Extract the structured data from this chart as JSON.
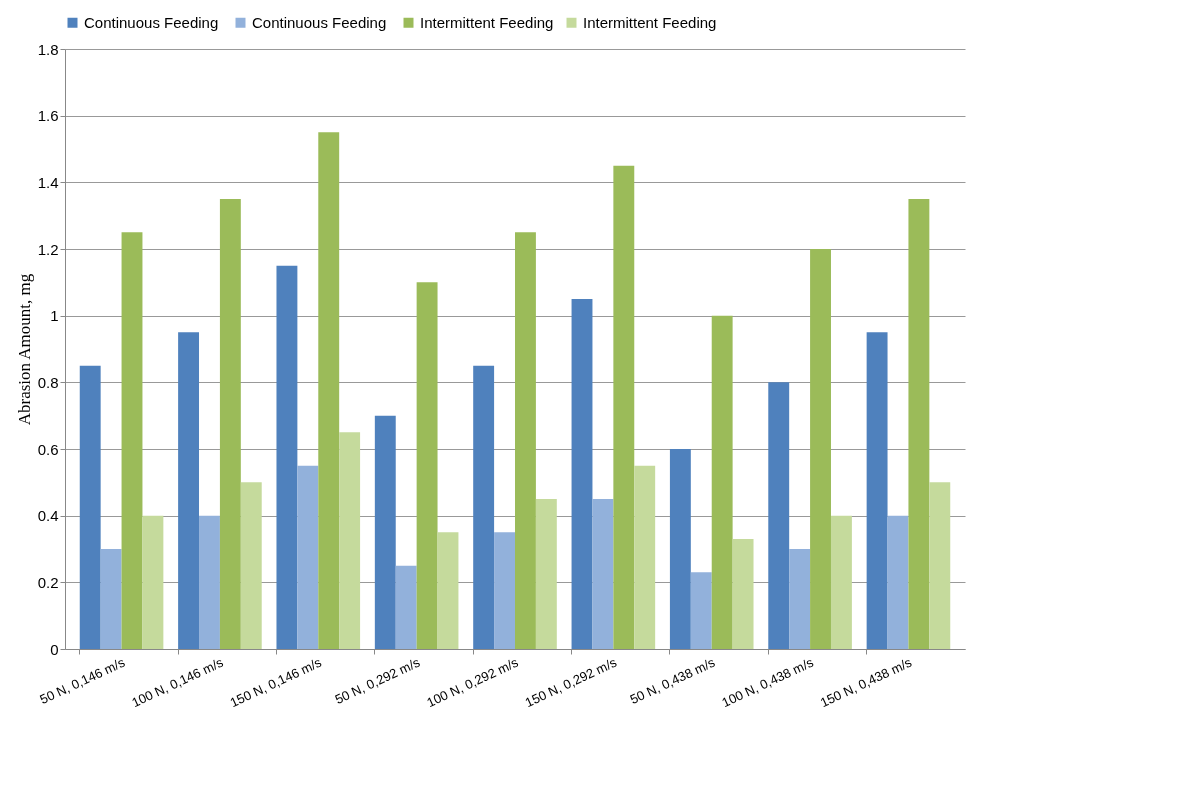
{
  "chart_data": {
    "type": "bar",
    "ylabel": "Abrasion Amount, mg",
    "categories": [
      "50 N, 0,146 m/s",
      "100 N, 0,146 m/s",
      "150 N, 0,146 m/s",
      "50 N, 0,292 m/s",
      "100 N, 0,292 m/s",
      "150 N, 0,292 m/s",
      "50 N, 0,438 m/s",
      "100 N, 0,438 m/s",
      "150 N, 0,438 m/s"
    ],
    "series": [
      {
        "name": "Continuous  Feeding",
        "color": "#4f81bd",
        "values": [
          0.85,
          0.95,
          1.15,
          0.7,
          0.85,
          1.05,
          0.6,
          0.8,
          0.95
        ]
      },
      {
        "name": "Continuous  Feeding",
        "color": "#92b1db",
        "values": [
          0.3,
          0.4,
          0.55,
          0.25,
          0.35,
          0.45,
          0.23,
          0.3,
          0.4
        ]
      },
      {
        "name": "Intermittent Feeding",
        "color": "#9bbb59",
        "values": [
          1.25,
          1.35,
          1.55,
          1.1,
          1.25,
          1.45,
          1.0,
          1.2,
          1.35
        ]
      },
      {
        "name": "Intermittent Feeding",
        "color": "#c5da9c",
        "values": [
          0.4,
          0.5,
          0.65,
          0.35,
          0.45,
          0.55,
          0.33,
          0.4,
          0.5
        ]
      }
    ],
    "ylim": [
      0,
      1.8
    ],
    "yticks": [
      0,
      0.2,
      0.4,
      0.6,
      0.8,
      1,
      1.2,
      1.4,
      1.6,
      1.8
    ],
    "grid": "y",
    "legend": "top"
  }
}
